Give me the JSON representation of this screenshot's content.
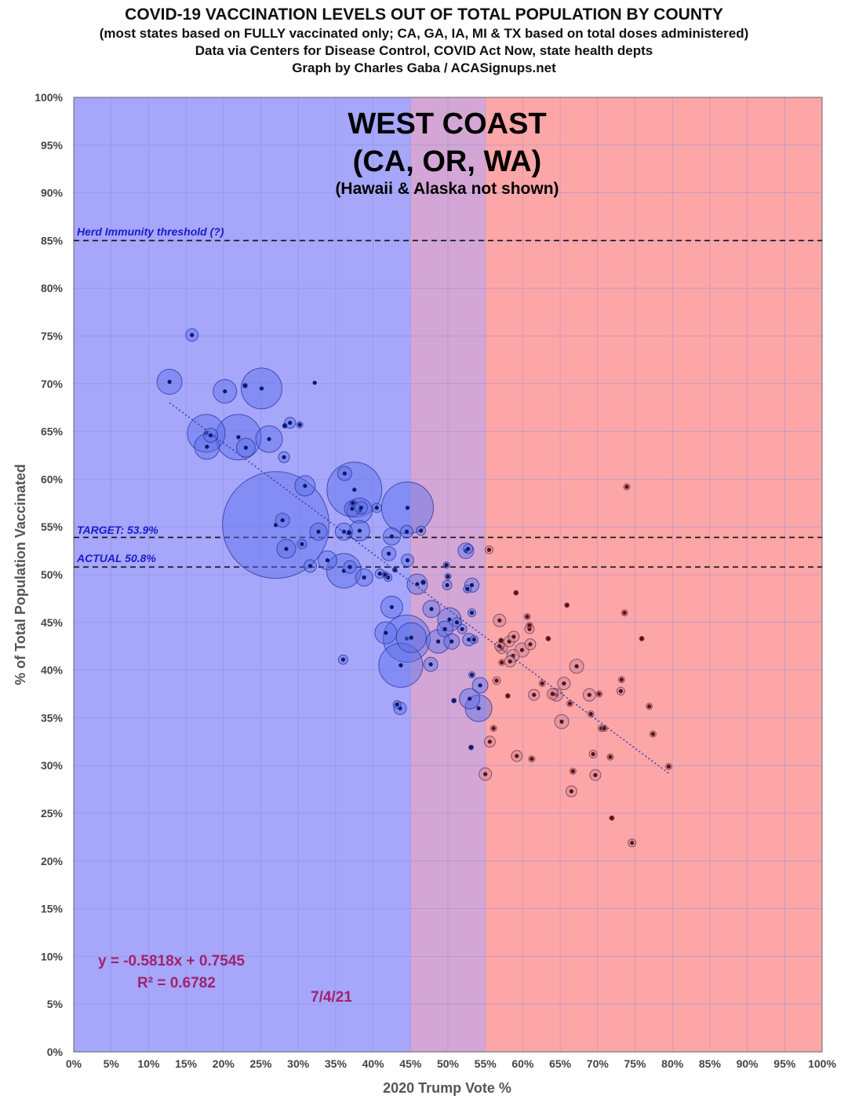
{
  "header": {
    "title": "COVID-19 VACCINATION LEVELS OUT OF TOTAL POPULATION BY COUNTY",
    "subtitle": "(most states based on FULLY vaccinated only; CA, GA, IA, MI & TX based on total doses administered)",
    "source": "Data via Centers for Disease Control, COVID Act Now, state health depts",
    "credit": "Graph by Charles Gaba / ACASignups.net"
  },
  "colors": {
    "blue_region": "#a6a6fb",
    "purple_region": "#d3a6d6",
    "red_region": "#fda6a8",
    "blue_bubble": "#5a6fe8",
    "red_bubble": "#c98a9a",
    "trend": "#3a3aaa",
    "equation": "#a0226e",
    "annotation": "#1b1bcc"
  },
  "chart_data": {
    "type": "scatter",
    "title": "WEST COAST",
    "title_line2": "(CA, OR, WA)",
    "note": "(Hawaii & Alaska not shown)",
    "xlabel": "2020 Trump Vote %",
    "ylabel": "% of Total Population Vaccinated",
    "xlim": [
      0,
      100
    ],
    "ylim": [
      0,
      100
    ],
    "x_ticks": [
      "0%",
      "5%",
      "10%",
      "15%",
      "20%",
      "25%",
      "30%",
      "35%",
      "40%",
      "45%",
      "50%",
      "55%",
      "60%",
      "65%",
      "70%",
      "75%",
      "80%",
      "85%",
      "90%",
      "95%",
      "100%"
    ],
    "y_ticks": [
      "0%",
      "5%",
      "10%",
      "15%",
      "20%",
      "25%",
      "30%",
      "35%",
      "40%",
      "45%",
      "50%",
      "55%",
      "60%",
      "65%",
      "70%",
      "75%",
      "80%",
      "85%",
      "90%",
      "95%",
      "100%"
    ],
    "grid": true,
    "regions": [
      {
        "from": 0,
        "to": 45,
        "color": "blue"
      },
      {
        "from": 45,
        "to": 55,
        "color": "purple"
      },
      {
        "from": 55,
        "to": 100,
        "color": "red"
      }
    ],
    "reference_lines": [
      {
        "y": 85,
        "label": "Herd Immunity threshold (?)"
      },
      {
        "y": 53.9,
        "label": "TARGET: 53.9%"
      },
      {
        "y": 50.8,
        "label": "ACTUAL 50.8%"
      }
    ],
    "trendline": {
      "slope": -0.5818,
      "intercept": 0.7545,
      "x_start": 12.8,
      "x_end": 79.5
    },
    "equation": "y = -0.5818x + 0.7545",
    "r_squared": "R² = 0.6782",
    "date": "7/4/21",
    "points": [
      [
        15.8,
        75.1,
        8
      ],
      [
        12.8,
        70.2,
        16
      ],
      [
        20.2,
        69.2,
        15
      ],
      [
        22.9,
        69.8,
        3
      ],
      [
        25.1,
        69.5,
        26
      ],
      [
        32.2,
        70.1,
        2
      ],
      [
        17.7,
        64.8,
        24
      ],
      [
        18.3,
        64.6,
        9
      ],
      [
        17.8,
        63.4,
        16
      ],
      [
        22.0,
        64.4,
        29
      ],
      [
        23.0,
        63.3,
        12
      ],
      [
        26.1,
        64.2,
        17
      ],
      [
        28.2,
        65.6,
        3
      ],
      [
        28.9,
        65.9,
        7
      ],
      [
        30.2,
        65.7,
        4
      ],
      [
        28.1,
        62.3,
        7
      ],
      [
        30.9,
        59.3,
        13
      ],
      [
        27.0,
        55.2,
        68
      ],
      [
        27.9,
        55.7,
        9
      ],
      [
        28.4,
        52.7,
        12
      ],
      [
        30.5,
        53.2,
        6
      ],
      [
        32.7,
        54.5,
        11
      ],
      [
        31.6,
        50.9,
        8
      ],
      [
        33.9,
        51.5,
        12
      ],
      [
        36.2,
        60.6,
        9
      ],
      [
        37.5,
        58.9,
        35
      ],
      [
        37.3,
        57.5,
        4
      ],
      [
        38.4,
        57.0,
        8
      ],
      [
        36.1,
        54.5,
        11
      ],
      [
        36.8,
        54.4,
        3
      ],
      [
        37.2,
        56.9,
        10
      ],
      [
        38.2,
        56.7,
        16
      ],
      [
        38.2,
        54.6,
        13
      ],
      [
        36.1,
        50.4,
        22
      ],
      [
        36.9,
        50.8,
        8
      ],
      [
        38.8,
        49.7,
        11
      ],
      [
        40.5,
        57.0,
        6
      ],
      [
        40.9,
        50.1,
        6
      ],
      [
        41.6,
        50.0,
        4
      ],
      [
        42.0,
        49.7,
        5
      ],
      [
        42.1,
        52.2,
        9
      ],
      [
        42.5,
        54.0,
        11
      ],
      [
        42.9,
        50.5,
        3
      ],
      [
        44.6,
        57.0,
        33
      ],
      [
        44.5,
        54.5,
        8
      ],
      [
        44.6,
        51.5,
        8
      ],
      [
        46.4,
        54.6,
        6
      ],
      [
        36.0,
        41.1,
        6
      ],
      [
        42.5,
        46.6,
        14
      ],
      [
        41.7,
        43.9,
        14
      ],
      [
        43.2,
        36.4,
        5
      ],
      [
        43.6,
        36.0,
        8
      ],
      [
        43.7,
        40.5,
        28
      ],
      [
        44.5,
        43.3,
        30
      ],
      [
        45.1,
        43.4,
        19
      ],
      [
        45.9,
        49.0,
        13
      ],
      [
        46.7,
        49.2,
        3
      ],
      [
        47.8,
        46.4,
        11
      ],
      [
        47.7,
        40.6,
        9
      ],
      [
        48.7,
        43.0,
        15
      ],
      [
        49.6,
        44.3,
        10
      ],
      [
        49.8,
        51.0,
        4
      ],
      [
        50.0,
        49.8,
        4
      ],
      [
        50.2,
        45.3,
        15
      ],
      [
        50.5,
        43.0,
        10
      ],
      [
        49.9,
        48.9,
        6
      ],
      [
        50.8,
        36.8,
        3
      ],
      [
        51.2,
        45.0,
        6
      ],
      [
        51.9,
        44.3,
        6
      ],
      [
        52.4,
        52.5,
        10
      ],
      [
        52.7,
        52.7,
        6
      ],
      [
        52.6,
        48.5,
        5
      ],
      [
        53.2,
        48.9,
        9
      ],
      [
        52.8,
        43.2,
        8
      ],
      [
        53.2,
        46.0,
        5
      ],
      [
        53.5,
        43.2,
        5
      ],
      [
        53.2,
        39.5,
        4
      ],
      [
        52.9,
        37.0,
        13
      ],
      [
        53.1,
        31.9,
        3
      ],
      [
        54.1,
        36.0,
        17
      ],
      [
        54.3,
        38.4,
        10
      ],
      [
        55.0,
        29.1,
        8
      ],
      [
        55.5,
        52.6,
        5
      ],
      [
        55.6,
        32.5,
        7
      ],
      [
        56.1,
        33.9,
        4
      ],
      [
        56.5,
        38.9,
        5
      ],
      [
        56.9,
        42.5,
        6
      ],
      [
        57.2,
        42.3,
        7
      ],
      [
        56.9,
        45.2,
        8
      ],
      [
        57.1,
        43.1,
        3
      ],
      [
        57.2,
        40.8,
        4
      ],
      [
        58.0,
        37.3,
        3
      ],
      [
        58.2,
        43.0,
        7
      ],
      [
        58.3,
        40.9,
        7
      ],
      [
        58.7,
        41.5,
        8
      ],
      [
        58.8,
        43.5,
        7
      ],
      [
        59.1,
        48.1,
        3
      ],
      [
        59.2,
        31.0,
        7
      ],
      [
        59.9,
        42.1,
        9
      ],
      [
        60.6,
        45.6,
        4
      ],
      [
        60.9,
        44.3,
        6
      ],
      [
        60.9,
        44.7,
        4
      ],
      [
        61.0,
        42.7,
        7
      ],
      [
        61.2,
        30.7,
        4
      ],
      [
        61.5,
        37.4,
        7
      ],
      [
        62.6,
        38.6,
        4
      ],
      [
        63.4,
        43.3,
        3
      ],
      [
        64.0,
        37.5,
        7
      ],
      [
        64.5,
        37.4,
        8
      ],
      [
        65.2,
        34.6,
        9
      ],
      [
        65.5,
        38.6,
        8
      ],
      [
        65.9,
        46.8,
        3
      ],
      [
        66.3,
        36.5,
        4
      ],
      [
        66.7,
        29.4,
        4
      ],
      [
        66.5,
        27.3,
        7
      ],
      [
        67.2,
        40.4,
        9
      ],
      [
        68.9,
        37.4,
        8
      ],
      [
        69.1,
        35.4,
        4
      ],
      [
        69.4,
        31.2,
        5
      ],
      [
        69.7,
        29.0,
        7
      ],
      [
        70.2,
        37.5,
        4
      ],
      [
        70.5,
        33.9,
        4
      ],
      [
        70.9,
        33.9,
        4
      ],
      [
        71.7,
        30.9,
        4
      ],
      [
        71.9,
        24.5,
        3
      ],
      [
        73.1,
        37.8,
        5
      ],
      [
        73.2,
        39.0,
        4
      ],
      [
        73.6,
        46.0,
        4
      ],
      [
        73.9,
        59.2,
        4
      ],
      [
        74.6,
        21.9,
        5
      ],
      [
        75.9,
        43.3,
        3
      ],
      [
        76.9,
        36.2,
        4
      ],
      [
        77.4,
        33.3,
        4
      ],
      [
        79.5,
        29.9,
        4
      ]
    ]
  }
}
